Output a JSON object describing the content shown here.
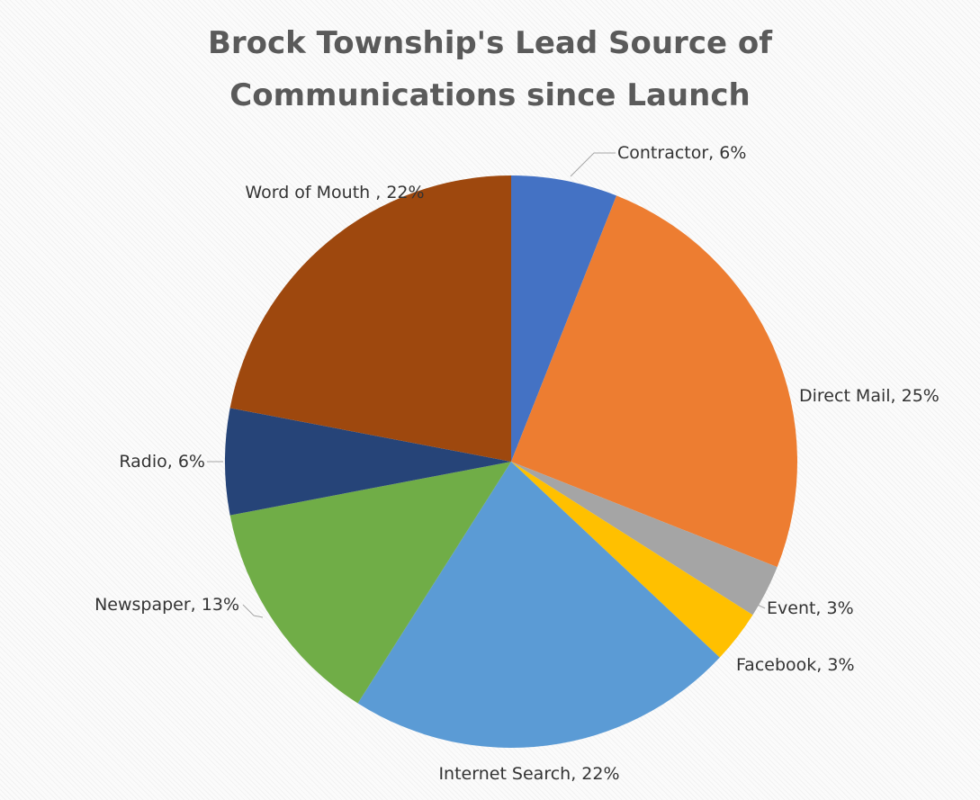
{
  "chart_data": {
    "type": "pie",
    "title": [
      "Brock Township's Lead Source of",
      "Communications since Launch"
    ],
    "start_angle_deg": 0,
    "direction": "clockwise",
    "slices": [
      {
        "name": "Contractor",
        "label": "Contractor, 6%",
        "value": 6,
        "color": "#4472c4"
      },
      {
        "name": "Direct Mail",
        "label": "Direct Mail, 25%",
        "value": 25,
        "color": "#ed7d31"
      },
      {
        "name": "Event",
        "label": "Event, 3%",
        "value": 3,
        "color": "#a5a5a5"
      },
      {
        "name": "Facebook",
        "label": "Facebook, 3%",
        "value": 3,
        "color": "#ffc000"
      },
      {
        "name": "Internet Search",
        "label": "Internet Search, 22%",
        "value": 22,
        "color": "#5b9bd5"
      },
      {
        "name": "Newspaper",
        "label": "Newspaper, 13%",
        "value": 13,
        "color": "#70ad47"
      },
      {
        "name": "Radio",
        "label": "Radio, 6%",
        "value": 6,
        "color": "#264478"
      },
      {
        "name": "Word of Mouth",
        "label": "Word of Mouth , 22%",
        "value": 22,
        "color": "#9e480e"
      }
    ]
  }
}
